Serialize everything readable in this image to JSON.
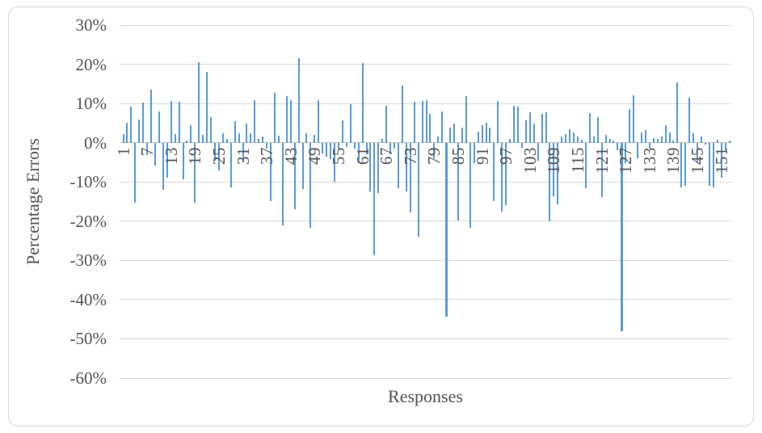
{
  "chart_data": {
    "type": "bar",
    "title": "",
    "xlabel": "Responses",
    "ylabel": "Percentage Errors",
    "ylim": [
      -60,
      30
    ],
    "ytick_step": 10,
    "grid": true,
    "legend": false,
    "bar_color": "#5b9bd5",
    "y_ticks": [
      {
        "value": 30,
        "label": "30%"
      },
      {
        "value": 20,
        "label": "20%"
      },
      {
        "value": 10,
        "label": "10%"
      },
      {
        "value": 0,
        "label": "0%"
      },
      {
        "value": -10,
        "label": "-10%"
      },
      {
        "value": -20,
        "label": "-20%"
      },
      {
        "value": -30,
        "label": "-30%"
      },
      {
        "value": -40,
        "label": "-40%"
      },
      {
        "value": -50,
        "label": "-50%"
      },
      {
        "value": -60,
        "label": "-60%"
      }
    ],
    "x_tick_labels": [
      "1",
      "7",
      "13",
      "19",
      "25",
      "31",
      "37",
      "43",
      "49",
      "55",
      "61",
      "67",
      "73",
      "79",
      "85",
      "91",
      "97",
      "103",
      "109",
      "115",
      "121",
      "127",
      "133",
      "139",
      "145",
      "151"
    ],
    "x_tick_every": 6,
    "categories_range": [
      1,
      153
    ],
    "values_percent": [
      2.1,
      5.1,
      9.3,
      -15.3,
      6.0,
      10.2,
      -3.2,
      13.6,
      -5.9,
      8.0,
      -12.0,
      -9.0,
      10.6,
      2.1,
      10.4,
      -9.4,
      0.5,
      4.5,
      -15.4,
      20.5,
      2.0,
      18.0,
      6.6,
      -4.6,
      -7.0,
      2.4,
      1.0,
      -11.3,
      5.5,
      2.4,
      -5.0,
      4.9,
      2.3,
      10.8,
      1.0,
      1.5,
      -1.5,
      -14.8,
      12.6,
      1.7,
      -21.0,
      11.9,
      10.9,
      -16.9,
      21.6,
      -11.8,
      2.3,
      -21.6,
      1.9,
      10.9,
      -2.7,
      -3.5,
      -4.2,
      -9.9,
      -1.5,
      5.8,
      -1.2,
      9.8,
      -1.5,
      -5.2,
      20.4,
      -2.9,
      -12.4,
      -28.7,
      -12.9,
      1.0,
      9.4,
      -2.9,
      -1.5,
      -11.7,
      14.5,
      -12.4,
      -17.8,
      10.4,
      -24.0,
      10.6,
      10.9,
      7.3,
      -3.9,
      1.5,
      7.9,
      -44.3,
      3.8,
      4.8,
      -19.9,
      3.9,
      11.8,
      -21.6,
      -5.3,
      2.9,
      4.4,
      5.0,
      3.9,
      -14.8,
      10.6,
      -17.5,
      -16.0,
      1.0,
      9.5,
      9.3,
      -1.4,
      5.6,
      7.7,
      4.8,
      -4.6,
      7.3,
      7.8,
      -20.0,
      -13.7,
      -15.7,
      1.5,
      2.2,
      3.4,
      2.6,
      1.6,
      0.7,
      -11.6,
      7.5,
      1.6,
      6.6,
      -13.8,
      2.0,
      1.0,
      0.5,
      -2.0,
      -48.0,
      -5.2,
      8.5,
      12.1,
      -3.9,
      2.6,
      3.3,
      -1.5,
      1.2,
      0.9,
      1.6,
      4.4,
      2.6,
      0.5,
      15.4,
      -11.3,
      -11.0,
      11.5,
      2.3,
      -5.3,
      1.5,
      -0.5,
      -11.0,
      -11.5,
      0.8,
      -9.0,
      -2.0,
      0.5
    ]
  },
  "colors": {
    "bar": "#5b9bd5",
    "gridline": "#d9d9d9",
    "zero_axis": "#bfbfbf",
    "text": "#545454",
    "frame_border": "#d9d9d9",
    "background": "#ffffff"
  }
}
